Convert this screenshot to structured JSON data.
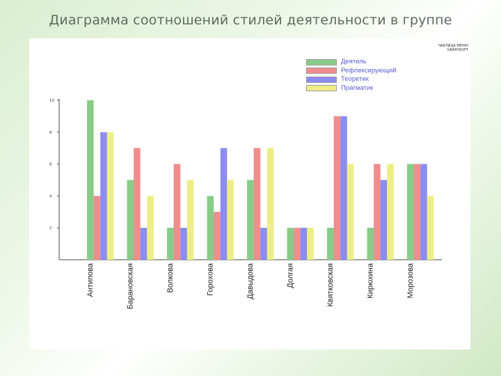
{
  "page": {
    "title": "Диаграмма соотношений стилей деятельности в группе",
    "watermark": [
      "ЧАБЛИЦА МЕНЮ",
      "GRAPHSOFT"
    ]
  },
  "chart_data": {
    "type": "bar",
    "title": "",
    "xlabel": "",
    "ylabel": "",
    "ylim": [
      0,
      10
    ],
    "yticks": [
      2,
      4,
      6,
      8,
      10
    ],
    "grid": false,
    "legend_position": "top-right",
    "categories": [
      "Антипова",
      "Барановская",
      "Волкова",
      "Горохова",
      "Давыдова",
      "Долгая",
      "Квятковская",
      "Кирюхина",
      "Морозова"
    ],
    "series": [
      {
        "name": "Деятель",
        "color": "#88cc88",
        "values": [
          10,
          5,
          2,
          4,
          5,
          2,
          2,
          2,
          6
        ]
      },
      {
        "name": "Рефлексирующий",
        "color": "#f28c8c",
        "values": [
          4,
          7,
          6,
          3,
          7,
          2,
          9,
          6,
          6
        ]
      },
      {
        "name": "Теоретик",
        "color": "#8c8cf0",
        "values": [
          8,
          2,
          2,
          7,
          2,
          2,
          9,
          5,
          6
        ]
      },
      {
        "name": "Прагматик",
        "color": "#eeee88",
        "values": [
          8,
          4,
          5,
          5,
          7,
          2,
          6,
          6,
          4
        ]
      }
    ]
  }
}
